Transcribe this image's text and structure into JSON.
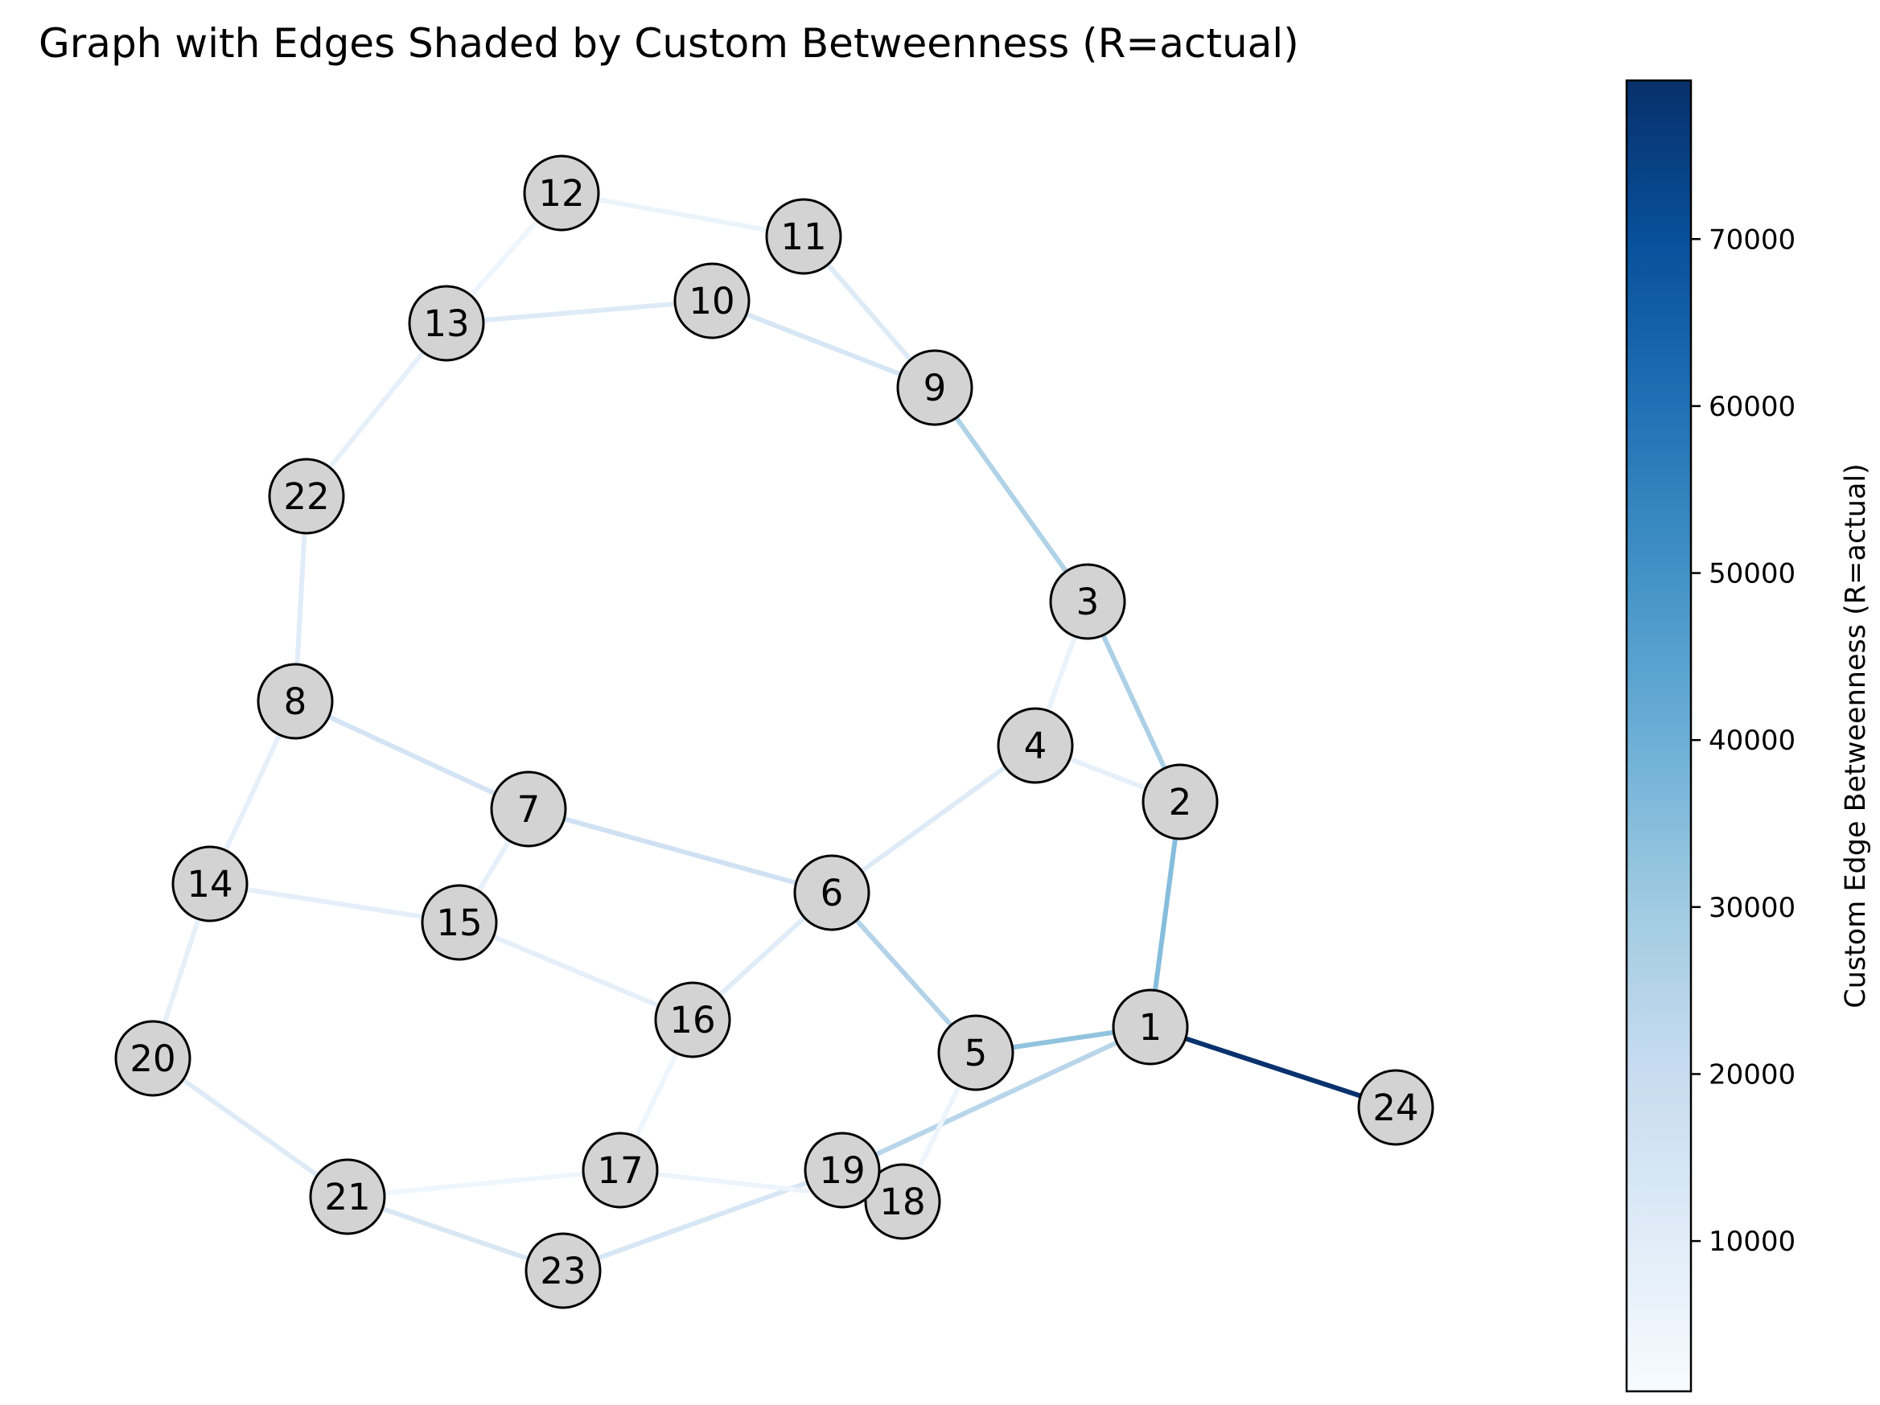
{
  "title": "Graph with Edges Shaded by Custom Betweenness (R=actual)",
  "colorbar": {
    "label": "Custom Edge Betweenness (R=actual)",
    "colormap": "Blues",
    "min": 1000,
    "max": 79500,
    "ticks": [
      10000,
      20000,
      30000,
      40000,
      50000,
      60000,
      70000
    ],
    "tick_labels": [
      "10000",
      "20000",
      "30000",
      "40000",
      "50000",
      "60000",
      "70000"
    ],
    "stops": [
      "#f7fbff",
      "#deebf7",
      "#c6dbef",
      "#9ecae1",
      "#6baed6",
      "#4292c6",
      "#2171b5",
      "#08519c",
      "#08306b"
    ]
  },
  "node_style": {
    "fill": "#d3d3d3",
    "stroke": "#000000"
  },
  "nodes": [
    {
      "id": "1"
    },
    {
      "id": "2"
    },
    {
      "id": "3"
    },
    {
      "id": "4"
    },
    {
      "id": "5"
    },
    {
      "id": "6"
    },
    {
      "id": "7"
    },
    {
      "id": "8"
    },
    {
      "id": "9"
    },
    {
      "id": "10"
    },
    {
      "id": "11"
    },
    {
      "id": "12"
    },
    {
      "id": "13"
    },
    {
      "id": "14"
    },
    {
      "id": "15"
    },
    {
      "id": "16"
    },
    {
      "id": "17"
    },
    {
      "id": "18"
    },
    {
      "id": "19"
    },
    {
      "id": "20"
    },
    {
      "id": "21"
    },
    {
      "id": "22"
    },
    {
      "id": "23"
    },
    {
      "id": "24"
    }
  ],
  "edges": [
    {
      "source": "1",
      "target": "24",
      "value": 79000
    },
    {
      "source": "1",
      "target": "2",
      "value": 35000
    },
    {
      "source": "1",
      "target": "5",
      "value": 33000
    },
    {
      "source": "1",
      "target": "19",
      "value": 24000
    },
    {
      "source": "2",
      "target": "3",
      "value": 27000
    },
    {
      "source": "3",
      "target": "9",
      "value": 26000
    },
    {
      "source": "6",
      "target": "5",
      "value": 25000
    },
    {
      "source": "7",
      "target": "6",
      "value": 17000
    },
    {
      "source": "8",
      "target": "7",
      "value": 15000
    },
    {
      "source": "10",
      "target": "9",
      "value": 14000
    },
    {
      "source": "9",
      "target": "11",
      "value": 11000
    },
    {
      "source": "13",
      "target": "10",
      "value": 11000
    },
    {
      "source": "21",
      "target": "23",
      "value": 13000
    },
    {
      "source": "23",
      "target": "19",
      "value": 14000
    },
    {
      "source": "20",
      "target": "21",
      "value": 11000
    },
    {
      "source": "22",
      "target": "8",
      "value": 10000
    },
    {
      "source": "4",
      "target": "6",
      "value": 11000
    },
    {
      "source": "6",
      "target": "16",
      "value": 10000
    },
    {
      "source": "14",
      "target": "15",
      "value": 8500
    },
    {
      "source": "15",
      "target": "16",
      "value": 8500
    },
    {
      "source": "13",
      "target": "22",
      "value": 7500
    },
    {
      "source": "8",
      "target": "14",
      "value": 7500
    },
    {
      "source": "14",
      "target": "20",
      "value": 8000
    },
    {
      "source": "7",
      "target": "15",
      "value": 7500
    },
    {
      "source": "4",
      "target": "2",
      "value": 7500
    },
    {
      "source": "3",
      "target": "4",
      "value": 6000
    },
    {
      "source": "12",
      "target": "11",
      "value": 5500
    },
    {
      "source": "12",
      "target": "13",
      "value": 4500
    },
    {
      "source": "16",
      "target": "17",
      "value": 4500
    },
    {
      "source": "17",
      "target": "18",
      "value": 5000
    },
    {
      "source": "21",
      "target": "17",
      "value": 4000
    },
    {
      "source": "5",
      "target": "18",
      "value": 5000
    }
  ]
}
